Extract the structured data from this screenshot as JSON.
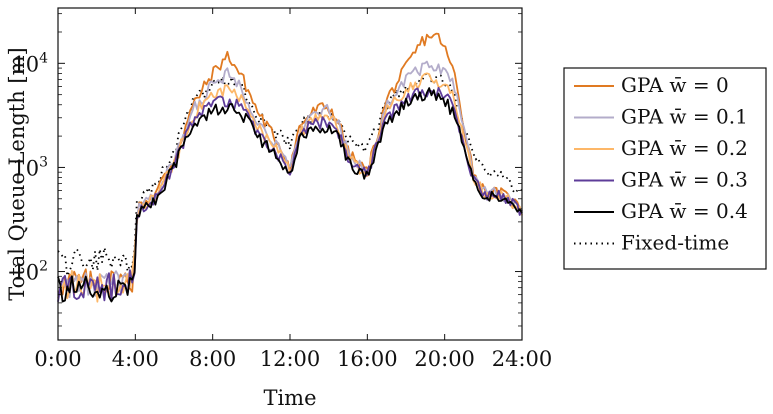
{
  "chart_data": {
    "type": "line",
    "title": "",
    "xlabel": "Time",
    "ylabel": "Total Queue Length [m]",
    "yscale": "log",
    "xlim": [
      0,
      24
    ],
    "ylim": [
      22,
      34000
    ],
    "grid": false,
    "legend_position": "right",
    "x_ticks": [
      0,
      4,
      8,
      12,
      16,
      20,
      24
    ],
    "x_tick_labels": [
      "0:00",
      "4:00",
      "8:00",
      "12:00",
      "16:00",
      "20:00",
      "24:00"
    ],
    "y_ticks": [
      100,
      1000,
      10000
    ],
    "y_tick_labels": [
      {
        "base": "10",
        "exp": "2"
      },
      {
        "base": "10",
        "exp": "3"
      },
      {
        "base": "10",
        "exp": "4"
      }
    ],
    "x": [
      0,
      1,
      2,
      3,
      3.9,
      4.1,
      5,
      6,
      7,
      8,
      8.8,
      9.5,
      10.3,
      11,
      11.5,
      12,
      12.5,
      13,
      13.5,
      14,
      14.5,
      15,
      15.5,
      16,
      16.5,
      17,
      18,
      18.8,
      19.3,
      19.8,
      20.5,
      21,
      21.5,
      22,
      23,
      24
    ],
    "series": [
      {
        "name": "GPA w̄ = 0",
        "color": "#e07a22",
        "dash": "",
        "values": [
          75,
          80,
          75,
          80,
          85,
          400,
          550,
          1200,
          4000,
          8000,
          12000,
          7500,
          3500,
          2200,
          1600,
          1000,
          2500,
          3200,
          3700,
          3800,
          2800,
          1400,
          1100,
          900,
          2000,
          4500,
          9000,
          16000,
          19000,
          17000,
          8000,
          2500,
          900,
          600,
          550,
          400
        ]
      },
      {
        "name": "GPA w̄ = 0.1",
        "color": "#b3acca",
        "dash": "",
        "values": [
          72,
          78,
          72,
          78,
          82,
          390,
          530,
          1150,
          3600,
          6200,
          8000,
          5800,
          2900,
          1900,
          1400,
          950,
          2300,
          3000,
          3400,
          3500,
          2600,
          1350,
          1050,
          880,
          1900,
          3900,
          7200,
          9000,
          9500,
          8800,
          6000,
          2200,
          850,
          580,
          540,
          390
        ]
      },
      {
        "name": "GPA w̄ = 0.2",
        "color": "#fdb768",
        "dash": "",
        "values": [
          70,
          76,
          70,
          76,
          80,
          380,
          510,
          1100,
          3200,
          5000,
          5800,
          4500,
          2500,
          1700,
          1300,
          900,
          2100,
          2700,
          3000,
          3100,
          2400,
          1300,
          1000,
          860,
          1800,
          3400,
          5600,
          6800,
          7200,
          6600,
          4800,
          1900,
          800,
          560,
          530,
          380
        ]
      },
      {
        "name": "GPA w̄ = 0.3",
        "color": "#5e3c99",
        "dash": "",
        "values": [
          68,
          74,
          68,
          74,
          78,
          370,
          490,
          1050,
          2900,
          4200,
          4400,
          3700,
          2200,
          1550,
          1200,
          860,
          1950,
          2450,
          2650,
          2750,
          2200,
          1250,
          960,
          840,
          1700,
          3000,
          4600,
          5400,
          5500,
          5100,
          3800,
          1700,
          760,
          545,
          520,
          370
        ]
      },
      {
        "name": "GPA w̄ = 0.4",
        "color": "#000000",
        "dash": "",
        "values": [
          65,
          70,
          65,
          70,
          75,
          360,
          470,
          1000,
          2600,
          3600,
          3800,
          3300,
          2000,
          1450,
          1100,
          820,
          1800,
          2250,
          2400,
          2500,
          2000,
          1200,
          920,
          820,
          1600,
          2700,
          4200,
          5000,
          5100,
          4700,
          3300,
          1550,
          720,
          530,
          510,
          360
        ]
      },
      {
        "name": "Fixed-time",
        "color": "#000000",
        "dash": "1.5,4",
        "values": [
          120,
          120,
          125,
          130,
          140,
          500,
          650,
          1500,
          4200,
          6500,
          7200,
          6000,
          3200,
          2400,
          2000,
          1700,
          2600,
          3000,
          3200,
          3300,
          2800,
          2000,
          1700,
          1500,
          2400,
          4000,
          6200,
          7000,
          7200,
          6800,
          5000,
          2300,
          1300,
          1000,
          800,
          560
        ]
      }
    ]
  }
}
